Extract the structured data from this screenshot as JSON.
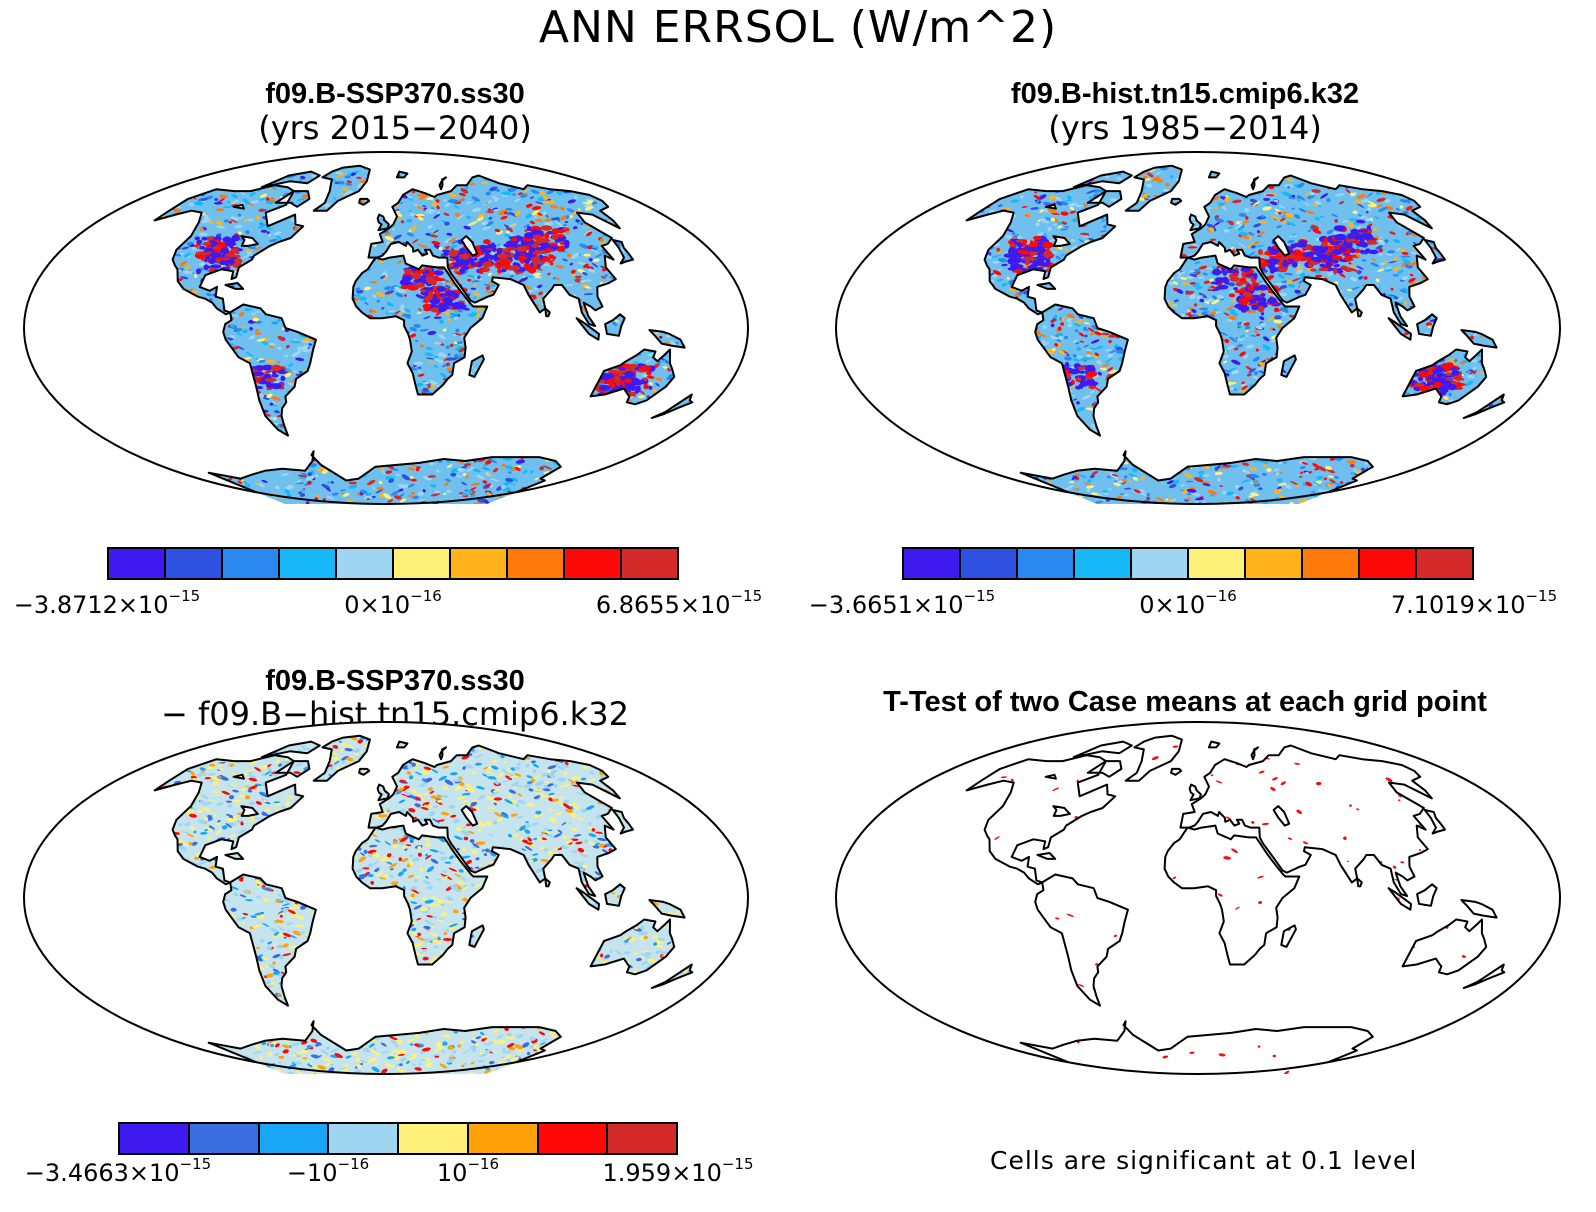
{
  "title": "ANN ERRSOL (W/m^2)",
  "panels": [
    {
      "id": "tl",
      "title": "f09.B-SSP370.ss30",
      "subtitle": "(yrs 2015−2040)",
      "colorbar": {
        "colors": [
          "#3f1af0",
          "#2e50e0",
          "#2b88f0",
          "#18b8f8",
          "#9ed6f2",
          "#fff07a",
          "#ffb21a",
          "#ff7a0a",
          "#ff0808",
          "#d42a2a"
        ],
        "ticks": [
          {
            "base": "−3.8712×10",
            "exp": "−15",
            "pos": 0
          },
          {
            "base": "0×10",
            "exp": "−16",
            "pos": 0.5
          },
          {
            "base": "6.8655×10",
            "exp": "−15",
            "pos": 1
          }
        ]
      }
    },
    {
      "id": "tr",
      "title": "f09.B-hist.tn15.cmip6.k32",
      "subtitle": "(yrs 1985−2014)",
      "colorbar": {
        "colors": [
          "#3f1af0",
          "#2e50e0",
          "#2b88f0",
          "#18b8f8",
          "#9ed6f2",
          "#fff07a",
          "#ffb21a",
          "#ff7a0a",
          "#ff0808",
          "#d42a2a"
        ],
        "ticks": [
          {
            "base": "−3.6651×10",
            "exp": "−15",
            "pos": 0
          },
          {
            "base": "0×10",
            "exp": "−16",
            "pos": 0.5
          },
          {
            "base": "7.1019×10",
            "exp": "−15",
            "pos": 1
          }
        ]
      }
    },
    {
      "id": "bl",
      "title": "f09.B-SSP370.ss30",
      "subtitle": "− f09.B−hist.tn15.cmip6.k32",
      "colorbar": {
        "colors": [
          "#3f1af0",
          "#3a6ee0",
          "#1aa6f6",
          "#9ed6f2",
          "#fff07a",
          "#ffa20a",
          "#ff0808",
          "#d42a2a"
        ],
        "ticks": [
          {
            "base": "−3.4663×10",
            "exp": "−15",
            "pos": 0
          },
          {
            "base": "−10",
            "exp": "−16",
            "pos": 0.375
          },
          {
            "base": "10",
            "exp": "−16",
            "pos": 0.625
          },
          {
            "base": "1.959×10",
            "exp": "−15",
            "pos": 1
          }
        ]
      }
    },
    {
      "id": "br",
      "title": "T-Test of two Case means at each grid point",
      "note": "Cells are significant at 0.1 level"
    }
  ]
}
